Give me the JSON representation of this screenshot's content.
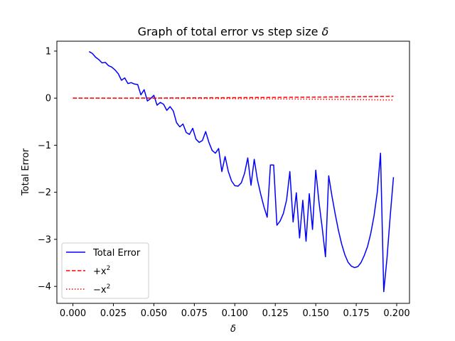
{
  "chart_data": {
    "type": "line",
    "title": "Graph of total error vs step size δ",
    "title_prefix": "Graph of total error vs step size ",
    "title_symbol": "δ",
    "xlabel": "δ",
    "ylabel": "Total Error",
    "xlim": [
      -0.0099,
      0.2079
    ],
    "ylim": [
      -4.36,
      1.21
    ],
    "xticks": [
      0.0,
      0.025,
      0.05,
      0.075,
      0.1,
      0.125,
      0.15,
      0.175,
      0.2
    ],
    "xtick_labels": [
      "0.000",
      "0.025",
      "0.050",
      "0.075",
      "0.100",
      "0.125",
      "0.150",
      "0.175",
      "0.200"
    ],
    "yticks": [
      1,
      0,
      -1,
      -2,
      -3,
      -4
    ],
    "ytick_labels": [
      "1",
      "0",
      "−1",
      "−2",
      "−3",
      "−4"
    ],
    "grid": false,
    "legend_position": "lower-left",
    "series": [
      {
        "name": "Total Error",
        "color": "#0000ff",
        "style": "solid",
        "x": [
          0.01,
          0.012,
          0.014,
          0.016,
          0.018,
          0.02,
          0.022,
          0.024,
          0.026,
          0.028,
          0.03,
          0.032,
          0.034,
          0.036,
          0.038,
          0.04,
          0.042,
          0.044,
          0.046,
          0.048,
          0.05,
          0.052,
          0.054,
          0.056,
          0.058,
          0.06,
          0.062,
          0.064,
          0.066,
          0.068,
          0.07,
          0.072,
          0.074,
          0.076,
          0.078,
          0.08,
          0.082,
          0.084,
          0.086,
          0.088,
          0.09,
          0.092,
          0.094,
          0.096,
          0.098,
          0.1,
          0.102,
          0.104,
          0.106,
          0.108,
          0.11,
          0.112,
          0.114,
          0.116,
          0.118,
          0.12,
          0.122,
          0.124,
          0.126,
          0.128,
          0.13,
          0.132,
          0.134,
          0.136,
          0.138,
          0.14,
          0.142,
          0.144,
          0.146,
          0.148,
          0.15,
          0.152,
          0.154,
          0.156,
          0.158,
          0.16,
          0.162,
          0.164,
          0.166,
          0.168,
          0.17,
          0.172,
          0.174,
          0.176,
          0.178,
          0.18,
          0.182,
          0.184,
          0.186,
          0.188,
          0.19,
          0.192,
          0.194,
          0.196,
          0.198
        ],
        "y": [
          0.99,
          0.95,
          0.87,
          0.82,
          0.75,
          0.76,
          0.69,
          0.66,
          0.6,
          0.52,
          0.38,
          0.43,
          0.31,
          0.33,
          0.3,
          0.29,
          0.07,
          0.18,
          -0.06,
          -0.01,
          0.06,
          -0.15,
          -0.09,
          -0.13,
          -0.26,
          -0.18,
          -0.27,
          -0.52,
          -0.61,
          -0.55,
          -0.73,
          -0.77,
          -0.64,
          -0.87,
          -0.94,
          -0.9,
          -0.71,
          -0.94,
          -1.11,
          -1.17,
          -1.07,
          -1.56,
          -1.24,
          -1.56,
          -1.76,
          -1.86,
          -1.87,
          -1.8,
          -1.6,
          -1.27,
          -1.85,
          -1.3,
          -1.74,
          -2.04,
          -2.31,
          -2.53,
          -1.42,
          -1.42,
          -2.7,
          -2.61,
          -2.45,
          -2.16,
          -1.56,
          -2.63,
          -2.01,
          -2.97,
          -2.17,
          -3.04,
          -2.03,
          -2.79,
          -1.53,
          -2.21,
          -2.76,
          -3.37,
          -1.65,
          -2.08,
          -2.46,
          -2.81,
          -3.1,
          -3.33,
          -3.49,
          -3.57,
          -3.6,
          -3.58,
          -3.49,
          -3.34,
          -3.15,
          -2.87,
          -2.5,
          -2.0,
          -1.17,
          -4.11,
          -3.4,
          -2.5,
          -1.68
        ]
      },
      {
        "name": "+x²",
        "name_base": "+x",
        "name_sup": "2",
        "color": "#ff0000",
        "style": "dashed",
        "x": [
          0.0,
          0.025,
          0.05,
          0.075,
          0.1,
          0.125,
          0.15,
          0.175,
          0.198
        ],
        "y": [
          0.0,
          0.000625,
          0.0025,
          0.005625,
          0.01,
          0.015625,
          0.0225,
          0.030625,
          0.039204
        ]
      },
      {
        "name": "−x²",
        "name_base": "−x",
        "name_sup": "2",
        "color": "#ff0000",
        "style": "dotted",
        "x": [
          0.0,
          0.025,
          0.05,
          0.075,
          0.1,
          0.125,
          0.15,
          0.175,
          0.198
        ],
        "y": [
          0.0,
          -0.000625,
          -0.0025,
          -0.005625,
          -0.01,
          -0.015625,
          -0.0225,
          -0.030625,
          -0.039204
        ]
      }
    ]
  }
}
